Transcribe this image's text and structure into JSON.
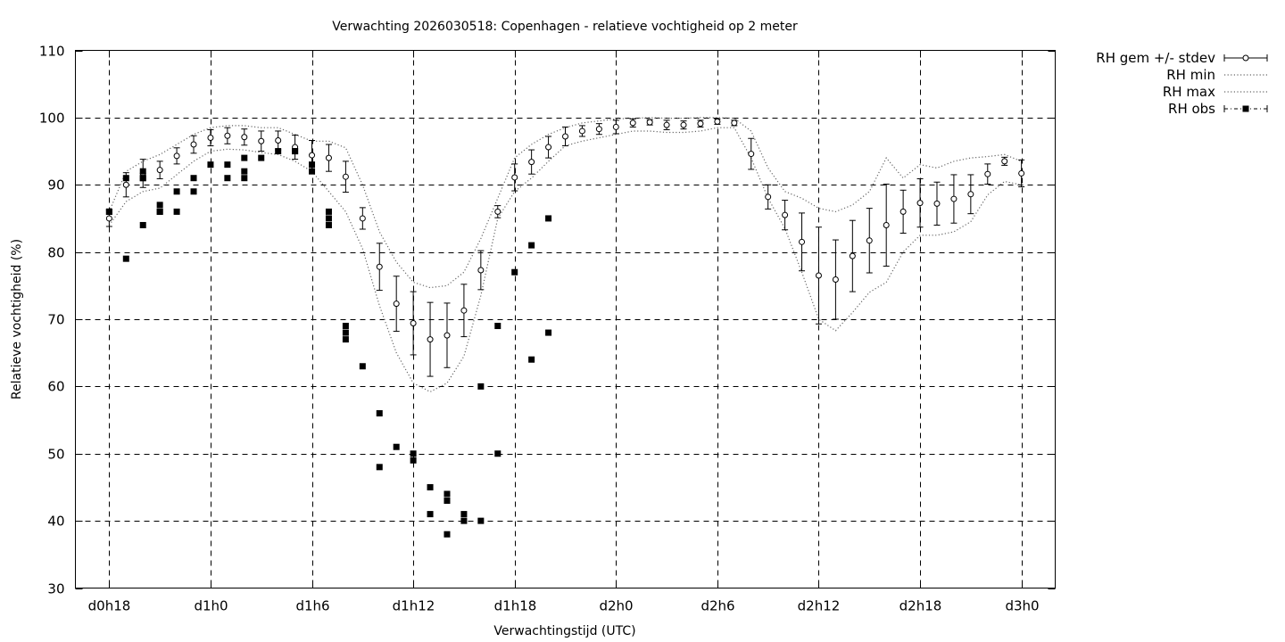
{
  "chart_data": {
    "type": "scatter",
    "title": "Verwachting 2026030518: Copenhagen - relatieve vochtigheid op 2 meter",
    "xlabel": "Verwachtingstijd (UTC)",
    "ylabel": "Relatieve vochtigheid (%)",
    "xlim": [
      -2,
      56
    ],
    "ylim": [
      30,
      110
    ],
    "x_unit": "uur na d0h18",
    "grid": true,
    "legend_position": "outside-top-right",
    "x_ticks": [
      {
        "x": 0,
        "label": "d0h18"
      },
      {
        "x": 6,
        "label": "d1h0"
      },
      {
        "x": 12,
        "label": "d1h6"
      },
      {
        "x": 18,
        "label": "d1h12"
      },
      {
        "x": 24,
        "label": "d1h18"
      },
      {
        "x": 30,
        "label": "d2h0"
      },
      {
        "x": 36,
        "label": "d2h6"
      },
      {
        "x": 42,
        "label": "d2h12"
      },
      {
        "x": 48,
        "label": "d2h18"
      },
      {
        "x": 54,
        "label": "d3h0"
      }
    ],
    "y_ticks": [
      30,
      40,
      50,
      60,
      70,
      80,
      90,
      100,
      110
    ],
    "series": [
      {
        "name": "RH gem +/- stdev",
        "style": "errorbar-open-circle",
        "x": [
          0,
          1,
          2,
          3,
          4,
          5,
          6,
          7,
          8,
          9,
          10,
          11,
          12,
          13,
          14,
          15,
          16,
          17,
          18,
          19,
          20,
          21,
          22,
          23,
          24,
          25,
          26,
          27,
          28,
          29,
          30,
          31,
          32,
          33,
          34,
          35,
          36,
          37,
          38,
          39,
          40,
          41,
          42,
          43,
          44,
          45,
          46,
          47,
          48,
          49,
          50,
          51,
          52,
          53,
          54
        ],
        "y": [
          85.0,
          90.0,
          91.7,
          92.2,
          94.3,
          96.0,
          97.0,
          97.3,
          97.1,
          96.5,
          96.6,
          95.6,
          94.4,
          94.0,
          91.2,
          85.0,
          77.8,
          72.3,
          69.4,
          67.0,
          67.6,
          71.3,
          77.3,
          86.0,
          91.1,
          93.4,
          95.6,
          97.2,
          98.0,
          98.3,
          98.6,
          99.2,
          99.3,
          98.9,
          98.9,
          99.1,
          99.4,
          99.2,
          94.6,
          88.2,
          85.5,
          81.5,
          76.5,
          75.9,
          79.4,
          81.7,
          84.0,
          86.0,
          87.3,
          87.2,
          87.9,
          88.6,
          91.6,
          93.5,
          91.7
        ],
        "stdev": [
          1.2,
          1.8,
          2.1,
          1.3,
          1.2,
          1.3,
          1.2,
          1.2,
          1.2,
          1.5,
          1.4,
          1.8,
          2.2,
          2.0,
          2.3,
          1.6,
          3.5,
          4.1,
          4.7,
          5.5,
          4.8,
          3.9,
          2.9,
          0.9,
          2.0,
          1.8,
          1.6,
          1.4,
          0.8,
          0.8,
          1.0,
          0.6,
          0.4,
          0.7,
          0.6,
          0.5,
          0.4,
          0.4,
          2.3,
          1.8,
          2.2,
          4.3,
          7.2,
          5.9,
          5.3,
          4.8,
          6.1,
          3.2,
          3.6,
          3.2,
          3.6,
          2.9,
          1.5,
          0.6,
          2.0
        ]
      },
      {
        "name": "RH min",
        "style": "dotted",
        "x": [
          0,
          1,
          2,
          3,
          4,
          5,
          6,
          7,
          8,
          9,
          10,
          11,
          12,
          13,
          14,
          15,
          16,
          17,
          18,
          19,
          20,
          21,
          22,
          23,
          24,
          25,
          26,
          27,
          28,
          29,
          30,
          31,
          32,
          33,
          34,
          35,
          36,
          37,
          38,
          39,
          40,
          41,
          42,
          43,
          44,
          45,
          46,
          47,
          48,
          49,
          50,
          51,
          52,
          53,
          54
        ],
        "y": [
          84.0,
          87.5,
          89.0,
          89.5,
          91.5,
          93.5,
          95.0,
          95.3,
          95.2,
          94.8,
          94.5,
          93.5,
          92.0,
          89.0,
          86.0,
          80.5,
          72.0,
          65.0,
          60.5,
          59.2,
          60.5,
          64.5,
          73.5,
          85.0,
          89.0,
          91.0,
          93.5,
          95.8,
          96.5,
          97.0,
          97.5,
          98.0,
          98.0,
          97.8,
          97.8,
          98.0,
          98.5,
          98.5,
          94.0,
          88.0,
          83.5,
          77.0,
          70.0,
          68.3,
          71.0,
          74.0,
          75.5,
          80.0,
          82.5,
          82.5,
          83.0,
          84.5,
          88.5,
          90.5,
          90.0
        ]
      },
      {
        "name": "RH max",
        "style": "dotted",
        "x": [
          0,
          1,
          2,
          3,
          4,
          5,
          6,
          7,
          8,
          9,
          10,
          11,
          12,
          13,
          14,
          15,
          16,
          17,
          18,
          19,
          20,
          21,
          22,
          23,
          24,
          25,
          26,
          27,
          28,
          29,
          30,
          31,
          32,
          33,
          34,
          35,
          36,
          37,
          38,
          39,
          40,
          41,
          42,
          43,
          44,
          45,
          46,
          47,
          48,
          49,
          50,
          51,
          52,
          53,
          54
        ],
        "y": [
          86.0,
          92.0,
          93.5,
          94.5,
          96.0,
          97.5,
          98.5,
          98.8,
          98.8,
          98.5,
          98.5,
          97.5,
          96.5,
          96.5,
          95.5,
          90.0,
          83.0,
          78.5,
          75.5,
          74.7,
          75.0,
          77.0,
          82.0,
          88.0,
          94.0,
          96.0,
          97.5,
          98.5,
          99.2,
          99.5,
          99.8,
          99.9,
          100.0,
          99.9,
          99.9,
          100.0,
          100.0,
          99.9,
          98.0,
          92.5,
          89.0,
          88.0,
          86.5,
          86.0,
          87.0,
          89.0,
          94.0,
          91.0,
          93.0,
          92.5,
          93.5,
          94.0,
          94.2,
          94.5,
          93.5
        ]
      },
      {
        "name": "RH obs",
        "style": "filled-square",
        "x": [
          0,
          0,
          1,
          1,
          2,
          2,
          2,
          2,
          3,
          3,
          3,
          4,
          4,
          5,
          5,
          6,
          7,
          7,
          8,
          8,
          8,
          9,
          10,
          11,
          11,
          12,
          12,
          13,
          13,
          13,
          14,
          14,
          14,
          15,
          16,
          16,
          17,
          18,
          18,
          19,
          19,
          20,
          20,
          20,
          21,
          21,
          22,
          22,
          23,
          23,
          24,
          25,
          25,
          26,
          26
        ],
        "y": [
          86,
          86,
          91,
          79,
          92,
          91,
          84,
          91,
          87,
          86,
          86,
          89,
          86,
          91,
          89,
          93,
          93,
          91,
          94,
          92,
          91,
          94,
          95,
          95,
          95,
          93,
          92,
          86,
          85,
          84,
          69,
          68,
          67,
          63,
          56,
          48,
          51,
          50,
          49,
          45,
          41,
          43,
          44,
          38,
          40,
          41,
          60,
          40,
          50,
          69,
          77,
          81,
          64,
          85,
          68
        ]
      }
    ]
  }
}
